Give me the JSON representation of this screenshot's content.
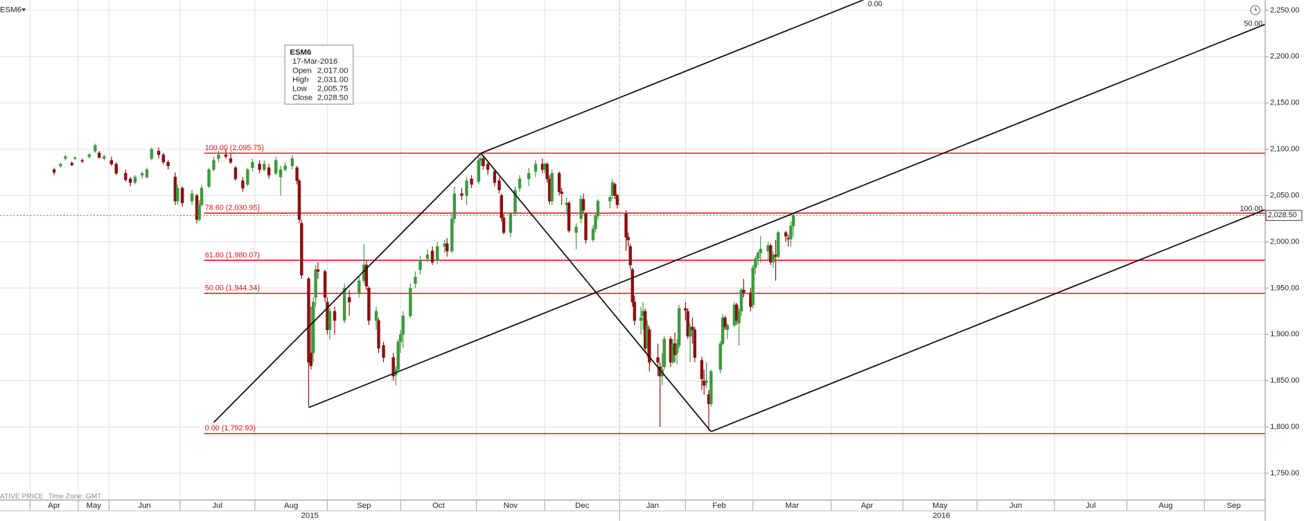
{
  "chart_data": {
    "type": "candlestick",
    "symbol": "ESM6",
    "status_mode": "ATIVE PRICE",
    "status_timezone": "Time Zone: GMT",
    "x": [
      "2015-04-16",
      "2015-04-20",
      "2015-04-23",
      "2015-04-27",
      "2015-04-29",
      "2015-05-05",
      "2015-05-12",
      "2015-05-18",
      "2015-05-22",
      "2015-05-27",
      "2015-06-02",
      "2015-06-04",
      "2015-06-08",
      "2015-06-10",
      "2015-06-12",
      "2015-06-15",
      "2015-06-17",
      "2015-06-19",
      "2015-06-22",
      "2015-06-24",
      "2015-06-26",
      "2015-06-29",
      "2015-06-30",
      "2015-07-02",
      "2015-07-06",
      "2015-07-08",
      "2015-07-09",
      "2015-07-10",
      "2015-07-13",
      "2015-07-15",
      "2015-07-17",
      "2015-07-20",
      "2015-07-22",
      "2015-07-24",
      "2015-07-27",
      "2015-07-29",
      "2015-07-31",
      "2015-08-03",
      "2015-08-05",
      "2015-08-07",
      "2015-08-10",
      "2015-08-12",
      "2015-08-14",
      "2015-08-17",
      "2015-08-19",
      "2015-08-20",
      "2015-08-21",
      "2015-08-24",
      "2015-08-25",
      "2015-08-26",
      "2015-08-27",
      "2015-08-28",
      "2015-08-31",
      "2015-09-01",
      "2015-09-02",
      "2015-09-04",
      "2015-09-08",
      "2015-09-10",
      "2015-09-14",
      "2015-09-16",
      "2015-09-17",
      "2015-09-18",
      "2015-09-21",
      "2015-09-22",
      "2015-09-24",
      "2015-09-28",
      "2015-09-29",
      "2015-09-30",
      "2015-10-01",
      "2015-10-02",
      "2015-10-05",
      "2015-10-07",
      "2015-10-09",
      "2015-10-12",
      "2015-10-14",
      "2015-10-16",
      "2015-10-19",
      "2015-10-20",
      "2015-10-22",
      "2015-10-23",
      "2015-10-26",
      "2015-10-28",
      "2015-10-30",
      "2015-11-02",
      "2015-11-03",
      "2015-11-04",
      "2015-11-06",
      "2015-11-09",
      "2015-11-11",
      "2015-11-12",
      "2015-11-13",
      "2015-11-16",
      "2015-11-18",
      "2015-11-20",
      "2015-11-24",
      "2015-11-27",
      "2015-11-30",
      "2015-12-01",
      "2015-12-02",
      "2015-12-03",
      "2015-12-04",
      "2015-12-07",
      "2015-12-08",
      "2015-12-10",
      "2015-12-11",
      "2015-12-14",
      "2015-12-16",
      "2015-12-17",
      "2015-12-18",
      "2015-12-21",
      "2015-12-22",
      "2015-12-23",
      "2015-12-28",
      "2015-12-29",
      "2015-12-30",
      "2015-12-31",
      "2016-01-04",
      "2016-01-05",
      "2016-01-06",
      "2016-01-07",
      "2016-01-08",
      "2016-01-11",
      "2016-01-12",
      "2016-01-13",
      "2016-01-14",
      "2016-01-15",
      "2016-01-19",
      "2016-01-20",
      "2016-01-21",
      "2016-01-22",
      "2016-01-25",
      "2016-01-26",
      "2016-01-27",
      "2016-01-28",
      "2016-01-29",
      "2016-02-01",
      "2016-02-02",
      "2016-02-03",
      "2016-02-04",
      "2016-02-05",
      "2016-02-08",
      "2016-02-09",
      "2016-02-10",
      "2016-02-11",
      "2016-02-12",
      "2016-02-16",
      "2016-02-17",
      "2016-02-18",
      "2016-02-19",
      "2016-02-22",
      "2016-02-23",
      "2016-02-24",
      "2016-02-25",
      "2016-02-26",
      "2016-02-29",
      "2016-03-01",
      "2016-03-02",
      "2016-03-03",
      "2016-03-04",
      "2016-03-07",
      "2016-03-08",
      "2016-03-09",
      "2016-03-10",
      "2016-03-11",
      "2016-03-14",
      "2016-03-15",
      "2016-03-16",
      "2016-03-17"
    ],
    "series": [
      {
        "up_color": "#3d9a3d",
        "down_color": "#8b1010",
        "open": [
          2078,
          2082,
          2090,
          2085,
          2090,
          2088,
          2092,
          2098,
          2096,
          2090,
          2088,
          2084,
          2074,
          2068,
          2064,
          2072,
          2070,
          2090,
          2098,
          2094,
          2086,
          2070,
          2044,
          2058,
          2044,
          2050,
          2024,
          2040,
          2060,
          2078,
          2090,
          2094,
          2090,
          2080,
          2066,
          2062,
          2080,
          2084,
          2078,
          2080,
          2074,
          2070,
          2078,
          2082,
          2080,
          2066,
          2020,
          1960,
          1880,
          1880,
          1940,
          1970,
          1968,
          1935,
          1905,
          1925,
          1915,
          1940,
          1945,
          1958,
          1975,
          1950,
          1915,
          1915,
          1888,
          1875,
          1856,
          1862,
          1892,
          1900,
          1920,
          1955,
          1970,
          1982,
          1990,
          1980,
          1995,
          1998,
          1990,
          2025,
          2052,
          2050,
          2068,
          2065,
          2088,
          2090,
          2084,
          2076,
          2066,
          2050,
          2026,
          2010,
          2032,
          2058,
          2068,
          2076,
          2084,
          2078,
          2084,
          2068,
          2044,
          2074,
          2054,
          2040,
          2042,
          2010,
          2025,
          2046,
          2030,
          2002,
          2014,
          2028,
          2044,
          2050,
          2062,
          2050,
          2030,
          2005,
          1995,
          1970,
          1935,
          1915,
          1920,
          1925,
          1885,
          1905,
          1875,
          1865,
          1855,
          1865,
          1895,
          1870,
          1890,
          1880,
          1888,
          1928,
          1925,
          1898,
          1908,
          1905,
          1872,
          1850,
          1848,
          1835,
          1825,
          1862,
          1890,
          1918,
          1905,
          1910,
          1932,
          1912,
          1925,
          1948,
          1945,
          1932,
          1972,
          1982,
          1988,
          1990,
          1996,
          1978,
          1986,
          1984,
          2010,
          2004,
          2003,
          2017
        ],
        "high": [
          2080,
          2085,
          2094,
          2087,
          2092,
          2090,
          2096,
          2106,
          2098,
          2094,
          2092,
          2086,
          2078,
          2070,
          2072,
          2076,
          2080,
          2102,
          2102,
          2096,
          2088,
          2075,
          2062,
          2060,
          2056,
          2052,
          2045,
          2062,
          2080,
          2092,
          2098,
          2100,
          2096,
          2082,
          2070,
          2080,
          2090,
          2088,
          2088,
          2084,
          2092,
          2082,
          2086,
          2094,
          2082,
          2068,
          2024,
          1962,
          1930,
          1940,
          1975,
          1978,
          1970,
          1940,
          1928,
          1930,
          1955,
          1948,
          1962,
          1998,
          1980,
          1952,
          1930,
          1918,
          1892,
          1880,
          1866,
          1895,
          1905,
          1925,
          1955,
          1968,
          1985,
          1992,
          1995,
          2000,
          2002,
          2004,
          2030,
          2060,
          2058,
          2070,
          2072,
          2092,
          2096,
          2094,
          2088,
          2078,
          2070,
          2052,
          2030,
          2032,
          2060,
          2072,
          2080,
          2088,
          2090,
          2086,
          2086,
          2072,
          2078,
          2076,
          2058,
          2048,
          2044,
          2020,
          2050,
          2052,
          2032,
          2018,
          2030,
          2046,
          2050,
          2068,
          2064,
          2052,
          2034,
          2010,
          1998,
          1972,
          1942,
          1930,
          1935,
          1928,
          1915,
          1908,
          1890,
          1870,
          1880,
          1898,
          1898,
          1895,
          1902,
          1895,
          1932,
          1935,
          1928,
          1912,
          1918,
          1908,
          1876,
          1862,
          1870,
          1840,
          1862,
          1893,
          1922,
          1920,
          1912,
          1935,
          1934,
          1928,
          1950,
          1960,
          1950,
          1975,
          1985,
          1990,
          2006,
          2000,
          1998,
          1990,
          2002,
          2012,
          2012,
          2008,
          2022,
          2031
        ],
        "low": [
          2072,
          2080,
          2088,
          2082,
          2088,
          2085,
          2090,
          2096,
          2090,
          2088,
          2082,
          2072,
          2065,
          2060,
          2062,
          2068,
          2068,
          2088,
          2090,
          2084,
          2078,
          2040,
          2040,
          2038,
          2040,
          2020,
          2022,
          2038,
          2058,
          2076,
          2086,
          2090,
          2084,
          2066,
          2054,
          2060,
          2076,
          2074,
          2076,
          2068,
          2072,
          2050,
          2076,
          2078,
          2062,
          2020,
          1960,
          1822,
          1862,
          1870,
          1930,
          1960,
          1935,
          1900,
          1895,
          1900,
          1912,
          1920,
          1940,
          1955,
          1948,
          1910,
          1905,
          1880,
          1870,
          1850,
          1845,
          1860,
          1880,
          1885,
          1918,
          1950,
          1965,
          1978,
          1975,
          1976,
          1988,
          1984,
          1988,
          2020,
          2045,
          2040,
          2058,
          2062,
          2082,
          2078,
          2072,
          2060,
          2052,
          2022,
          2008,
          2005,
          2028,
          2054,
          2060,
          2070,
          2074,
          2074,
          2064,
          2040,
          2040,
          2050,
          2040,
          2030,
          2010,
          1992,
          2020,
          2030,
          1998,
          2000,
          2010,
          2024,
          2036,
          2046,
          2046,
          2036,
          1990,
          1995,
          1970,
          1930,
          1910,
          1900,
          1905,
          1880,
          1875,
          1860,
          1855,
          1800,
          1845,
          1862,
          1865,
          1868,
          1870,
          1868,
          1885,
          1915,
          1895,
          1870,
          1890,
          1870,
          1840,
          1835,
          1842,
          1796,
          1822,
          1858,
          1888,
          1905,
          1895,
          1908,
          1910,
          1888,
          1920,
          1940,
          1925,
          1928,
          1965,
          1975,
          1978,
          1980,
          1975,
          1972,
          1958,
          1982,
          2000,
          1995,
          1995,
          2005.75
        ],
        "close": [
          2075,
          2084,
          2092,
          2083,
          2091,
          2087,
          2094,
          2104,
          2091,
          2092,
          2084,
          2074,
          2067,
          2064,
          2070,
          2074,
          2078,
          2100,
          2094,
          2086,
          2082,
          2044,
          2058,
          2042,
          2052,
          2024,
          2040,
          2058,
          2078,
          2088,
          2094,
          2092,
          2086,
          2068,
          2058,
          2078,
          2086,
          2078,
          2084,
          2072,
          2088,
          2078,
          2082,
          2090,
          2066,
          2024,
          1964,
          1870,
          1866,
          1935,
          1970,
          1968,
          1940,
          1905,
          1925,
          1915,
          1950,
          1935,
          1958,
          1975,
          1952,
          1915,
          1925,
          1885,
          1875,
          1855,
          1862,
          1892,
          1900,
          1920,
          1950,
          1962,
          1980,
          1986,
          1978,
          1995,
          1998,
          1990,
          2025,
          2052,
          2050,
          2066,
          2062,
          2088,
          2090,
          2082,
          2078,
          2064,
          2056,
          2026,
          2010,
          2030,
          2056,
          2068,
          2074,
          2084,
          2078,
          2084,
          2068,
          2044,
          2074,
          2054,
          2052,
          2042,
          2012,
          2016,
          2046,
          2034,
          2002,
          2014,
          2028,
          2044,
          2048,
          2064,
          2050,
          2040,
          2005,
          2002,
          1975,
          1935,
          1915,
          1918,
          1925,
          1885,
          1910,
          1870,
          1870,
          1855,
          1862,
          1895,
          1870,
          1890,
          1878,
          1888,
          1928,
          1926,
          1898,
          1908,
          1905,
          1875,
          1852,
          1845,
          1850,
          1825,
          1860,
          1890,
          1918,
          1908,
          1910,
          1932,
          1915,
          1925,
          1948,
          1945,
          1930,
          1972,
          1982,
          1988,
          1992,
          1996,
          1978,
          1986,
          1984,
          2010,
          2006,
          2003,
          2017,
          2028.5
        ]
      }
    ],
    "xlim": [
      "2015-03-08",
      "2016-09-30"
    ],
    "xticks": [
      {
        "value": "2015-04-01",
        "label": "Apr"
      },
      {
        "value": "2015-05-01",
        "label": "May"
      },
      {
        "value": "2015-06-01",
        "label": "Jun"
      },
      {
        "value": "2015-07-01",
        "label": "Jul"
      },
      {
        "value": "2015-08-01",
        "label": "Aug"
      },
      {
        "value": "2015-09-01",
        "label": "Sep"
      },
      {
        "value": "2015-10-01",
        "label": "Oct"
      },
      {
        "value": "2015-11-01",
        "label": "Nov"
      },
      {
        "value": "2015-12-01",
        "label": "Dec"
      },
      {
        "value": "2016-01-01",
        "label": "Jan"
      },
      {
        "value": "2016-02-01",
        "label": "Feb"
      },
      {
        "value": "2016-03-01",
        "label": "Mar"
      },
      {
        "value": "2016-04-01",
        "label": "Apr"
      },
      {
        "value": "2016-05-01",
        "label": "May"
      },
      {
        "value": "2016-06-01",
        "label": "Jun"
      },
      {
        "value": "2016-07-01",
        "label": "Jul"
      },
      {
        "value": "2016-08-01",
        "label": "Aug"
      },
      {
        "value": "2016-09-01",
        "label": "Sep"
      }
    ],
    "year_ticks": [
      2015,
      2016
    ],
    "ylim": [
      1722,
      2261
    ],
    "yticks": [
      {
        "value": 1750,
        "label": "1,750.00"
      },
      {
        "value": 1800,
        "label": "1,800.00"
      },
      {
        "value": 1850,
        "label": "1,850.00"
      },
      {
        "value": 1900,
        "label": "1,900.00"
      },
      {
        "value": 1950,
        "label": "1,950.00"
      },
      {
        "value": 2000,
        "label": "2,000.00"
      },
      {
        "value": 2050,
        "label": "2,050.00"
      },
      {
        "value": 2100,
        "label": "2,100.00"
      },
      {
        "value": 2150,
        "label": "2,150.00"
      },
      {
        "value": 2200,
        "label": "2,200.00"
      },
      {
        "value": 2250,
        "label": "2,250.00"
      }
    ],
    "grid": true,
    "fib_color": "#e0141e",
    "fib_levels": [
      {
        "price": 2095.75,
        "label": "100.00 (2,095.75)"
      },
      {
        "price": 2030.95,
        "label": "78.60 (2,030.95)"
      },
      {
        "price": 1980.07,
        "label": "61.80 (1,980.07)"
      },
      {
        "price": 1944.34,
        "label": "50.00 (1,944.34)"
      },
      {
        "price": 1792.93,
        "label": "0.00 (1,792.93)"
      }
    ],
    "pitchfork": {
      "points": [
        {
          "date": "2015-08-24",
          "price": 1821
        },
        {
          "date": "2015-11-03",
          "price": 2095.75
        },
        {
          "date": "2016-02-12",
          "price": 1795
        }
      ],
      "labels": [
        "0.00",
        "50.00",
        "100.00"
      ]
    },
    "trend_lines": [
      [
        {
          "date": "2015-07-15",
          "price": 1805
        },
        {
          "date": "2015-11-03",
          "price": 2095.75
        }
      ],
      [
        {
          "date": "2015-11-03",
          "price": 2095.75
        },
        {
          "date": "2016-02-12",
          "price": 1795
        }
      ]
    ],
    "last_price": {
      "value": 2028.5,
      "label": "2,028.50"
    },
    "tooltip": {
      "symbol": "ESM6",
      "date": "17-Mar-2016",
      "rows": [
        [
          "Open",
          "2,017.00"
        ],
        [
          "High",
          "2,031.00"
        ],
        [
          "Low",
          "2,005.75"
        ],
        [
          "Close",
          "2,028.50"
        ]
      ]
    }
  }
}
